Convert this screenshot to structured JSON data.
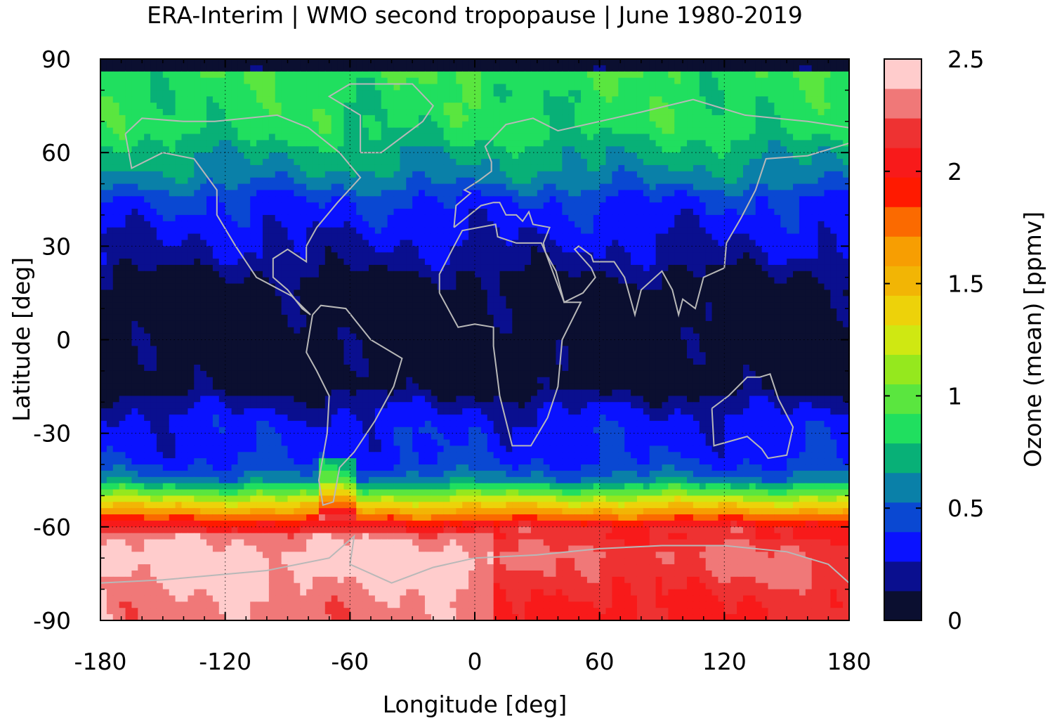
{
  "chart_data": {
    "type": "heatmap",
    "title": "ERA-Interim | WMO second tropopause | June 1980-2019",
    "xlabel": "Longitude [deg]",
    "ylabel": "Latitude [deg]",
    "colorbar_label": "Ozone (mean) [ppmv]",
    "xlim": [
      -180,
      180
    ],
    "ylim": [
      -90,
      90
    ],
    "xticks": [
      -180,
      -120,
      -60,
      0,
      60,
      120,
      180
    ],
    "xtick_labels": [
      "-180",
      "-120",
      "-60",
      "0",
      "60",
      "120",
      "180"
    ],
    "yticks": [
      90,
      60,
      30,
      0,
      -30,
      -60,
      -90
    ],
    "ytick_labels": [
      "90",
      "60",
      "30",
      "0",
      "-30",
      "-60",
      "-90"
    ],
    "colorbar_range": [
      0,
      2.5
    ],
    "colorbar_ticks": [
      0,
      0.5,
      1,
      1.5,
      2,
      2.5
    ],
    "colorbar_tick_labels": [
      "0",
      "0.5",
      "1",
      "1.5",
      "2",
      "2.5"
    ],
    "grid": true,
    "colorbar_position": "right",
    "colorscale": [
      "#0b0f30",
      "#0a0f8f",
      "#0a12ff",
      "#0a48d2",
      "#0a80a8",
      "#08b077",
      "#20df5f",
      "#5ae63f",
      "#95e81e",
      "#cfe812",
      "#edd20a",
      "#f2b505",
      "#f79e02",
      "#fb6a00",
      "#ff1a00",
      "#f81a1a",
      "#ee3232",
      "#f07878",
      "#ffcccc"
    ],
    "zonal_mean_profile": {
      "latitudes": [
        90,
        85,
        80,
        75,
        70,
        65,
        60,
        55,
        50,
        45,
        40,
        35,
        30,
        25,
        20,
        15,
        10,
        5,
        0,
        -5,
        -10,
        -15,
        -20,
        -25,
        -30,
        -35,
        -40,
        -45,
        -50,
        -55,
        -60,
        -65,
        -70,
        -75,
        -80,
        -85,
        -90
      ],
      "ozone_ppmv": [
        0.25,
        0.9,
        0.85,
        0.85,
        0.85,
        0.8,
        0.7,
        0.65,
        0.55,
        0.4,
        0.35,
        0.3,
        0.25,
        0.2,
        0.1,
        0.05,
        0.05,
        0.05,
        0.05,
        0.05,
        0.05,
        0.05,
        0.2,
        0.3,
        0.35,
        0.35,
        0.4,
        0.6,
        1.1,
        1.6,
        2.1,
        2.25,
        2.35,
        2.3,
        2.25,
        2.2,
        2.2
      ]
    }
  }
}
